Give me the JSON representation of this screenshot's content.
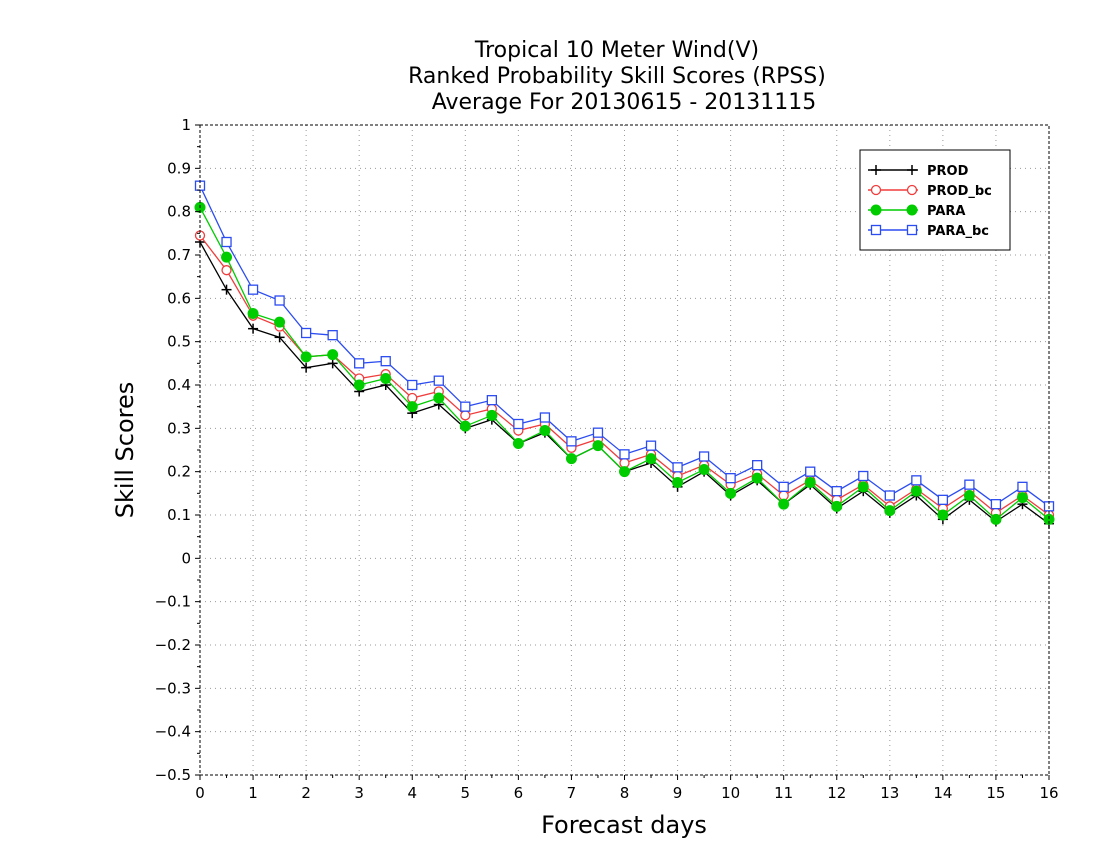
{
  "chart_data": {
    "type": "line",
    "title_lines": [
      "Tropical 10 Meter Wind(V)",
      "Ranked Probability Skill Scores (RPSS)",
      "Average For 20130615 - 20131115"
    ],
    "xlabel": "Forecast days",
    "ylabel": "Skill Scores",
    "xlim": [
      0,
      16
    ],
    "ylim": [
      -0.5,
      1
    ],
    "x_ticks": [
      0,
      1,
      2,
      3,
      4,
      5,
      6,
      7,
      8,
      9,
      10,
      11,
      12,
      13,
      14,
      15,
      16
    ],
    "x_tick_labels": [
      "0",
      "1",
      "2",
      "3",
      "4",
      "5",
      "6",
      "7",
      "8",
      "9",
      "10",
      "11",
      "12",
      "13",
      "14",
      "15",
      "16"
    ],
    "y_ticks": [
      1,
      0.9,
      0.8,
      0.7,
      0.6,
      0.5,
      0.4,
      0.3,
      0.2,
      0.1,
      0,
      -0.1,
      -0.2,
      -0.3,
      -0.4,
      -0.5
    ],
    "y_tick_labels": [
      "1",
      "0.9",
      "0.8",
      "0.7",
      "0.6",
      "0.5",
      "0.4",
      "0.3",
      "0.2",
      "0.1",
      "0",
      "−0.1",
      "−0.2",
      "−0.3",
      "−0.4",
      "−0.5"
    ],
    "grid": true,
    "legend_position": "top-right",
    "x": [
      0,
      0.5,
      1,
      1.5,
      2,
      2.5,
      3,
      3.5,
      4,
      4.5,
      5,
      5.5,
      6,
      6.5,
      7,
      7.5,
      8,
      8.5,
      9,
      9.5,
      10,
      10.5,
      11,
      11.5,
      12,
      12.5,
      13,
      13.5,
      14,
      14.5,
      15,
      15.5,
      16
    ],
    "series": [
      {
        "name": "PROD",
        "color": "#000000",
        "marker": "plus",
        "values": [
          0.73,
          0.62,
          0.53,
          0.51,
          0.44,
          0.45,
          0.385,
          0.4,
          0.335,
          0.355,
          0.3,
          0.32,
          0.265,
          0.29,
          0.23,
          0.26,
          0.2,
          0.22,
          0.165,
          0.2,
          0.145,
          0.18,
          0.125,
          0.17,
          0.115,
          0.155,
          0.105,
          0.145,
          0.09,
          0.135,
          0.085,
          0.125,
          0.08
        ]
      },
      {
        "name": "PROD_bc",
        "color": "#f03c3c",
        "marker": "open-circle",
        "values": [
          0.745,
          0.665,
          0.56,
          0.535,
          0.465,
          0.47,
          0.415,
          0.425,
          0.37,
          0.385,
          0.33,
          0.345,
          0.295,
          0.31,
          0.255,
          0.275,
          0.22,
          0.24,
          0.19,
          0.215,
          0.17,
          0.195,
          0.145,
          0.18,
          0.135,
          0.17,
          0.12,
          0.16,
          0.115,
          0.155,
          0.105,
          0.145,
          0.1
        ]
      },
      {
        "name": "PARA",
        "color": "#00cc00",
        "marker": "filled-circle",
        "values": [
          0.81,
          0.695,
          0.565,
          0.545,
          0.465,
          0.47,
          0.4,
          0.415,
          0.35,
          0.37,
          0.305,
          0.33,
          0.265,
          0.295,
          0.23,
          0.26,
          0.2,
          0.23,
          0.175,
          0.205,
          0.15,
          0.185,
          0.125,
          0.175,
          0.12,
          0.165,
          0.11,
          0.155,
          0.1,
          0.145,
          0.09,
          0.14,
          0.09
        ]
      },
      {
        "name": "PARA_bc",
        "color": "#2b4cf0",
        "marker": "open-square",
        "values": [
          0.86,
          0.73,
          0.62,
          0.595,
          0.52,
          0.515,
          0.45,
          0.455,
          0.4,
          0.41,
          0.35,
          0.365,
          0.31,
          0.325,
          0.27,
          0.29,
          0.24,
          0.26,
          0.21,
          0.235,
          0.185,
          0.215,
          0.165,
          0.2,
          0.155,
          0.19,
          0.145,
          0.18,
          0.135,
          0.17,
          0.125,
          0.165,
          0.12
        ]
      }
    ]
  }
}
